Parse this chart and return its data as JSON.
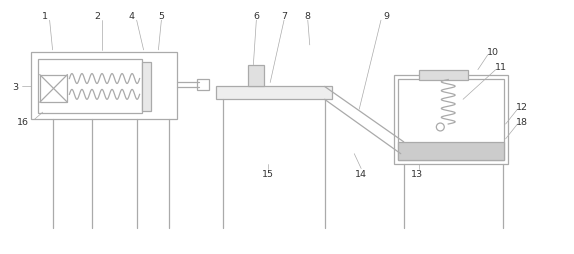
{
  "bg_color": "#ffffff",
  "line_color": "#aaaaaa",
  "label_color": "#333333",
  "fig_width": 5.74,
  "fig_height": 2.55,
  "dpi": 100
}
